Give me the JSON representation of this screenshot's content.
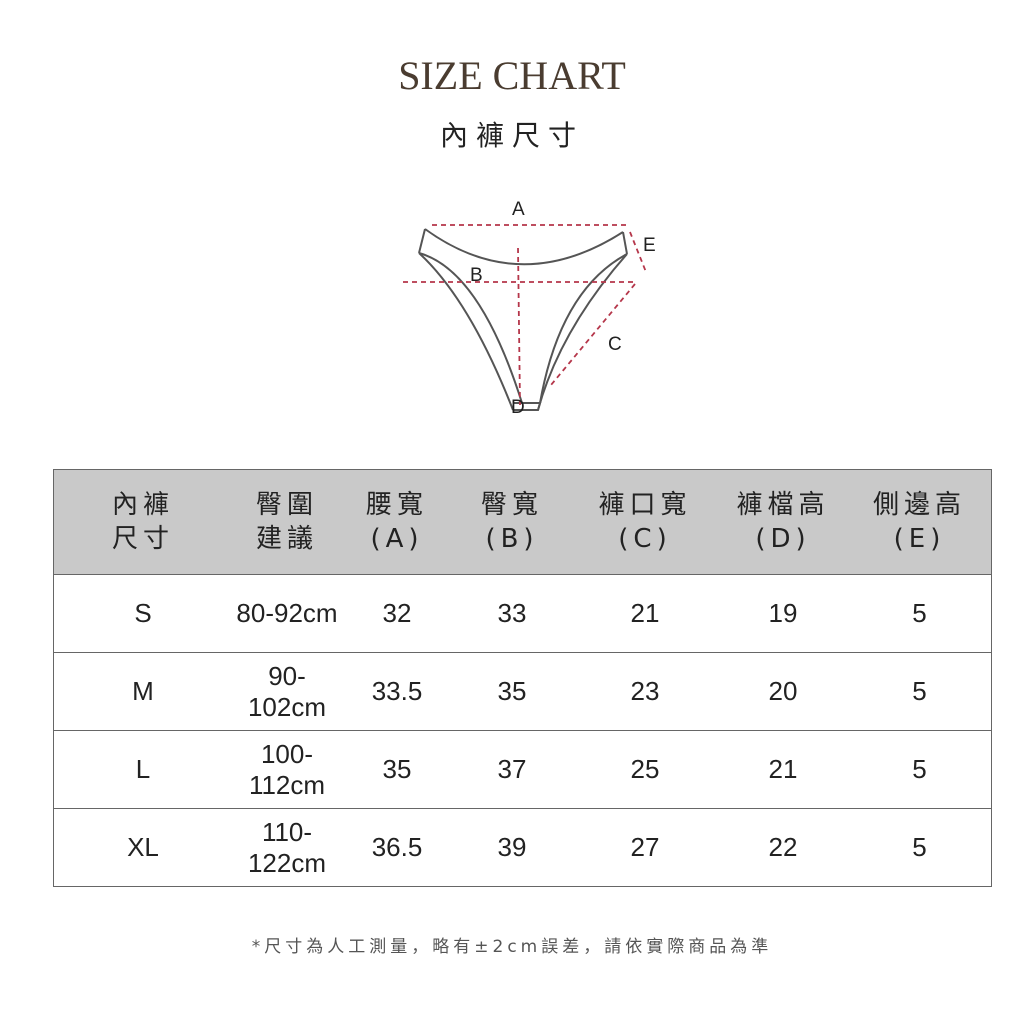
{
  "title": "SIZE CHART",
  "subtitle": "內褲尺寸",
  "diagram": {
    "labels": {
      "a": "A",
      "b": "B",
      "c": "C",
      "d": "D",
      "e": "E"
    },
    "line_color": "#b5364a"
  },
  "table": {
    "headers": [
      [
        "內褲",
        "尺寸"
      ],
      [
        "臀圍",
        "建議"
      ],
      [
        "腰寬",
        "(A)"
      ],
      [
        "臀寬",
        "(B)"
      ],
      [
        "褲口寬",
        "(C)"
      ],
      [
        "褲檔高",
        "(D)"
      ],
      [
        "側邊高",
        "(E)"
      ]
    ],
    "rows": [
      [
        "S",
        "80-92cm",
        "32",
        "33",
        "21",
        "19",
        "5"
      ],
      [
        "M",
        "90-102cm",
        "33.5",
        "35",
        "23",
        "20",
        "5"
      ],
      [
        "L",
        "100-112cm",
        "35",
        "37",
        "25",
        "21",
        "5"
      ],
      [
        "XL",
        "110-122cm",
        "36.5",
        "39",
        "27",
        "22",
        "5"
      ]
    ],
    "header_bg": "#c9c9c9"
  },
  "note": "*尺寸為人工測量，略有±2cm誤差，請依實際商品為準"
}
